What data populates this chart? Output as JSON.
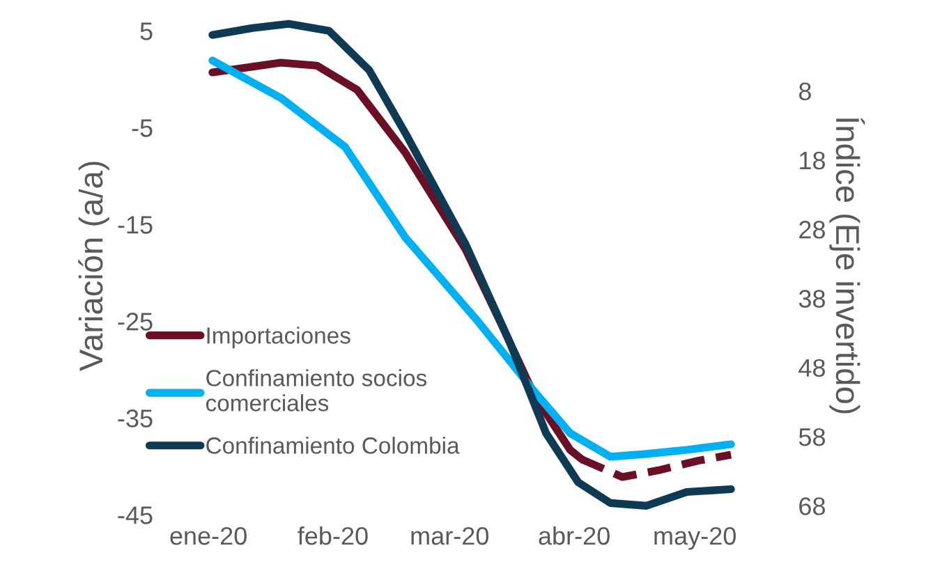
{
  "chart_data": {
    "type": "line",
    "ylabel": "Variación (a/a)",
    "y2label": "Índice (Eje invertido)",
    "ylim": [
      -45.5,
      7
    ],
    "yticks": [
      5,
      -5,
      -15,
      -25,
      -35,
      -45
    ],
    "y2lim": [
      70,
      -3.5
    ],
    "y2ticks": [
      8,
      18,
      28,
      38,
      48,
      58,
      68
    ],
    "xlim": [
      "2019-12-20",
      "2020-05-25"
    ],
    "xticks": [
      {
        "value": "2020-01-01",
        "label": "ene-20"
      },
      {
        "value": "2020-02-01",
        "label": "feb-20"
      },
      {
        "value": "2020-03-01",
        "label": "mar-20"
      },
      {
        "value": "2020-04-01",
        "label": "abr-20"
      },
      {
        "value": "2020-05-01",
        "label": "may-20"
      }
    ],
    "grid": false,
    "legend": "left",
    "marker": "none",
    "series": [
      {
        "name": "Importaciones",
        "color": "#6b0f24",
        "line_style": "solid",
        "x": [
          "2020-01-02",
          "2020-01-19",
          "2020-01-28",
          "2020-02-07",
          "2020-02-19",
          "2020-03-05",
          "2020-03-14",
          "2020-03-22",
          "2020-03-31",
          "2020-04-03"
        ],
        "values": [
          0.7,
          1.7,
          1.4,
          -1.1,
          -7.6,
          -17.6,
          -25.4,
          -32.6,
          -38.3,
          -39.3
        ]
      },
      {
        "color": "#6b0f24",
        "line_style": "dashed",
        "x": [
          "2020-04-03",
          "2020-04-13",
          "2020-04-22",
          "2020-05-02",
          "2020-05-10"
        ],
        "values": [
          -39.3,
          -41.1,
          -40.4,
          -39.4,
          -38.8
        ]
      },
      {
        "name": "Confinamiento socios\ncomerciales",
        "color": "#00b0f0",
        "axis": "y2",
        "line_style": "solid",
        "x": [
          "2020-01-02",
          "2020-01-19",
          "2020-02-04",
          "2020-02-19",
          "2020-03-08",
          "2020-03-22",
          "2020-03-31",
          "2020-04-10",
          "2020-04-19",
          "2020-04-29",
          "2020-05-10"
        ],
        "values": [
          3.6,
          9,
          16.1,
          29.2,
          41.3,
          51.4,
          57.5,
          60.9,
          60.5,
          59.9,
          59.1
        ]
      },
      {
        "name": "Confinamiento Colombia",
        "color": "#0e3a53",
        "axis": "y2",
        "line_style": "solid",
        "x": [
          "2020-01-02",
          "2020-01-12",
          "2020-01-21",
          "2020-01-31",
          "2020-02-10",
          "2020-02-19",
          "2020-03-05",
          "2020-03-16",
          "2020-03-25",
          "2020-04-02",
          "2020-04-10",
          "2020-04-19",
          "2020-04-29",
          "2020-05-10"
        ],
        "values": [
          -0.1,
          -1.1,
          -1.7,
          -0.7,
          5,
          14.1,
          30.2,
          44.4,
          57.5,
          64.6,
          67.6,
          68,
          66,
          65.6
        ]
      }
    ]
  }
}
